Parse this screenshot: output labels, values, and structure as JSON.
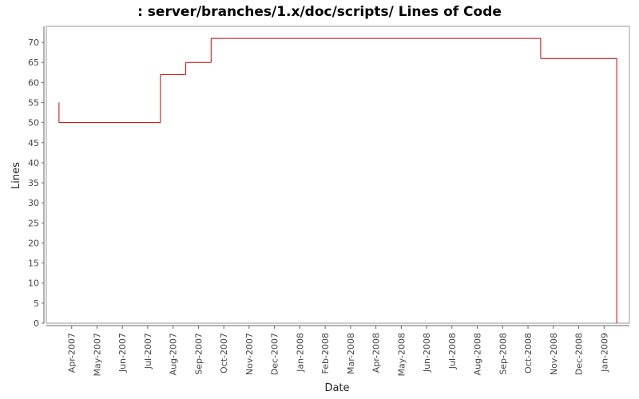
{
  "chart_data": {
    "type": "step",
    "title": ": server/branches/1.x/doc/scripts/ Lines of Code",
    "x_label": "Date",
    "y_label": "Lines",
    "x": [
      "2007-03",
      "2007-03",
      "2007-07",
      "2007-08",
      "2007-09",
      "2008-10",
      "2009-01",
      "2009-01"
    ],
    "values": [
      55,
      50,
      62,
      65,
      71,
      66,
      66,
      0
    ],
    "color": "#cc0000",
    "xlim": [
      "2007-03",
      "2009-02"
    ],
    "xticks": [
      {
        "value": "2007-04",
        "label": "Apr-2007"
      },
      {
        "value": "2007-05",
        "label": "May-2007"
      },
      {
        "value": "2007-06",
        "label": "Jun-2007"
      },
      {
        "value": "2007-07",
        "label": "Jul-2007"
      },
      {
        "value": "2007-08",
        "label": "Aug-2007"
      },
      {
        "value": "2007-09",
        "label": "Sep-2007"
      },
      {
        "value": "2007-10",
        "label": "Oct-2007"
      },
      {
        "value": "2007-11",
        "label": "Nov-2007"
      },
      {
        "value": "2007-12",
        "label": "Dec-2007"
      },
      {
        "value": "2008-01",
        "label": "Jan-2008"
      },
      {
        "value": "2008-02",
        "label": "Feb-2008"
      },
      {
        "value": "2008-03",
        "label": "Mar-2008"
      },
      {
        "value": "2008-04",
        "label": "Apr-2008"
      },
      {
        "value": "2008-05",
        "label": "May-2008"
      },
      {
        "value": "2008-06",
        "label": "Jun-2008"
      },
      {
        "value": "2008-07",
        "label": "Jul-2008"
      },
      {
        "value": "2008-08",
        "label": "Aug-2008"
      },
      {
        "value": "2008-09",
        "label": "Sep-2008"
      },
      {
        "value": "2008-10",
        "label": "Oct-2008"
      },
      {
        "value": "2008-11",
        "label": "Nov-2008"
      },
      {
        "value": "2008-12",
        "label": "Dec-2008"
      },
      {
        "value": "2009-01",
        "label": "Jan-2009"
      }
    ],
    "ylim": [
      0,
      74
    ],
    "yticks": [
      0,
      5,
      10,
      15,
      20,
      25,
      30,
      35,
      40,
      45,
      50,
      55,
      60,
      65,
      70
    ]
  }
}
